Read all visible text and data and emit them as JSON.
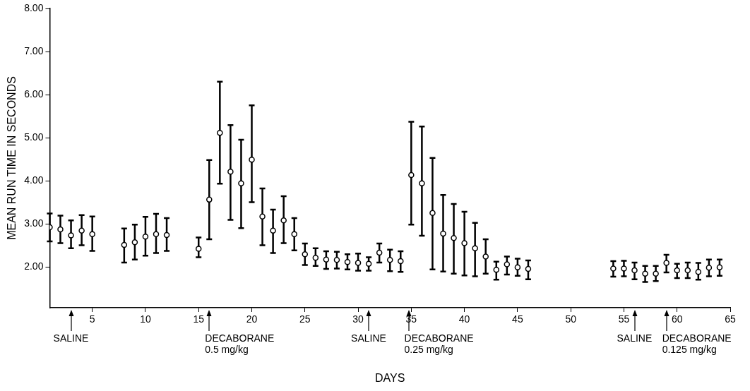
{
  "chart_data": {
    "type": "scatter",
    "xlabel": "DAYS",
    "ylabel": "MEAN RUN TIME IN SECONDS",
    "x": [
      1,
      2,
      3,
      4,
      5,
      8,
      9,
      10,
      11,
      12,
      15,
      16,
      17,
      18,
      19,
      20,
      21,
      22,
      23,
      24,
      25,
      26,
      27,
      28,
      29,
      30,
      31,
      32,
      33,
      34,
      35,
      36,
      37,
      38,
      39,
      40,
      41,
      42,
      43,
      44,
      45,
      46,
      54,
      55,
      56,
      57,
      58,
      59,
      60,
      61,
      62,
      63,
      64
    ],
    "series": [
      {
        "color": "#000000",
        "values": [
          2.92,
          2.87,
          2.73,
          2.84,
          2.76,
          2.51,
          2.57,
          2.7,
          2.76,
          2.74,
          2.42,
          3.56,
          5.11,
          4.21,
          3.94,
          4.49,
          3.17,
          2.84,
          3.08,
          2.76,
          2.29,
          2.21,
          2.17,
          2.16,
          2.11,
          2.09,
          2.07,
          2.33,
          2.16,
          2.13,
          4.13,
          3.94,
          3.25,
          2.77,
          2.67,
          2.55,
          2.43,
          2.24,
          1.93,
          2.06,
          1.99,
          1.95,
          1.96,
          1.96,
          1.92,
          1.84,
          1.84,
          2.09,
          1.92,
          1.92,
          1.88,
          1.98,
          1.99
        ],
        "errors": [
          [
            2.59,
            3.24
          ],
          [
            2.55,
            3.19
          ],
          [
            2.43,
            3.08
          ],
          [
            2.5,
            3.2
          ],
          [
            2.37,
            3.17
          ],
          [
            2.1,
            2.89
          ],
          [
            2.17,
            2.98
          ],
          [
            2.26,
            3.16
          ],
          [
            2.32,
            3.23
          ],
          [
            2.37,
            3.13
          ],
          [
            2.22,
            2.68
          ],
          [
            2.64,
            4.48
          ],
          [
            3.93,
            6.3
          ],
          [
            3.09,
            5.29
          ],
          [
            2.9,
            4.95
          ],
          [
            3.5,
            5.75
          ],
          [
            2.5,
            3.82
          ],
          [
            2.32,
            3.33
          ],
          [
            2.55,
            3.64
          ],
          [
            2.38,
            3.13
          ],
          [
            2.04,
            2.54
          ],
          [
            2.02,
            2.43
          ],
          [
            1.95,
            2.36
          ],
          [
            1.96,
            2.35
          ],
          [
            1.94,
            2.29
          ],
          [
            1.91,
            2.31
          ],
          [
            1.91,
            2.22
          ],
          [
            2.1,
            2.54
          ],
          [
            1.9,
            2.4
          ],
          [
            1.88,
            2.36
          ],
          [
            2.98,
            5.37
          ],
          [
            2.72,
            5.26
          ],
          [
            1.94,
            4.53
          ],
          [
            1.89,
            3.67
          ],
          [
            1.84,
            3.46
          ],
          [
            1.8,
            3.28
          ],
          [
            1.78,
            3.02
          ],
          [
            1.84,
            2.64
          ],
          [
            1.7,
            2.12
          ],
          [
            1.82,
            2.24
          ],
          [
            1.79,
            2.19
          ],
          [
            1.71,
            2.15
          ],
          [
            1.77,
            2.13
          ],
          [
            1.78,
            2.14
          ],
          [
            1.71,
            2.1
          ],
          [
            1.65,
            2.02
          ],
          [
            1.67,
            2.02
          ],
          [
            1.87,
            2.28
          ],
          [
            1.74,
            2.07
          ],
          [
            1.74,
            2.1
          ],
          [
            1.7,
            2.09
          ],
          [
            1.78,
            2.17
          ],
          [
            1.79,
            2.17
          ]
        ]
      }
    ],
    "marker": "circle",
    "xlim": [
      1,
      65
    ],
    "xticks": [
      5,
      10,
      15,
      20,
      25,
      30,
      35,
      40,
      45,
      50,
      55,
      60,
      65
    ],
    "ylim": [
      1.05,
      8
    ],
    "yticks": [
      {
        "value": 2,
        "label": "2.00"
      },
      {
        "value": 3,
        "label": "3.00"
      },
      {
        "value": 4,
        "label": "4.00"
      },
      {
        "value": 5,
        "label": "5.00"
      },
      {
        "value": 6,
        "label": "6.00"
      },
      {
        "value": 7,
        "label": "7.00"
      },
      {
        "value": 8,
        "label": "8.00"
      }
    ],
    "annotations": [
      "SALINE",
      "DECABORANE\n0.5 mg/kg",
      "SALINE",
      "DECABORANE\n0.25 mg/kg",
      "SALINE",
      "DECABORANE\n0.125 mg/kg"
    ]
  }
}
